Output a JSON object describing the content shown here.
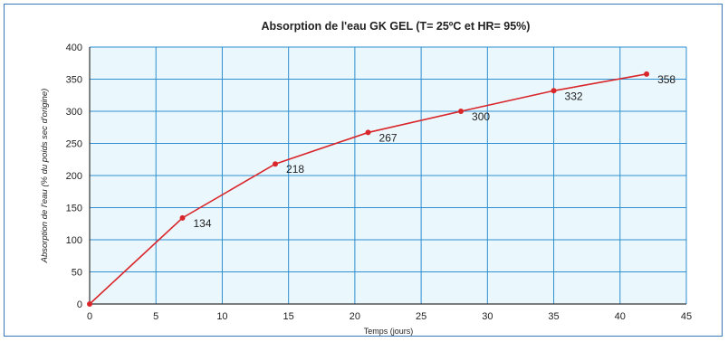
{
  "chart_data": {
    "type": "line",
    "title": "Absorption de l'eau GK GEL (T= 25ºC et HR= 95%)",
    "xlabel": "Temps (jours)",
    "ylabel": "Absorption de l'eau (% du poids sec d'origine)",
    "xlim": [
      0,
      45
    ],
    "ylim": [
      0,
      400
    ],
    "xticks": [
      0,
      5,
      10,
      15,
      20,
      25,
      30,
      35,
      40,
      45
    ],
    "yticks": [
      0,
      50,
      100,
      150,
      200,
      250,
      300,
      350,
      400
    ],
    "grid": true,
    "legend": "none",
    "colors": {
      "line": "#d9262b",
      "grid": "#2f8fd0",
      "plot_bg": "#eaf7fc",
      "frame": "#3a78b8"
    },
    "series": [
      {
        "x": [
          0,
          7,
          14,
          21,
          28,
          35,
          42
        ],
        "y": [
          0,
          134,
          218,
          267,
          300,
          332,
          358
        ],
        "labels": [
          "",
          "134",
          "218",
          "267",
          "300",
          "332",
          "358"
        ]
      }
    ]
  }
}
